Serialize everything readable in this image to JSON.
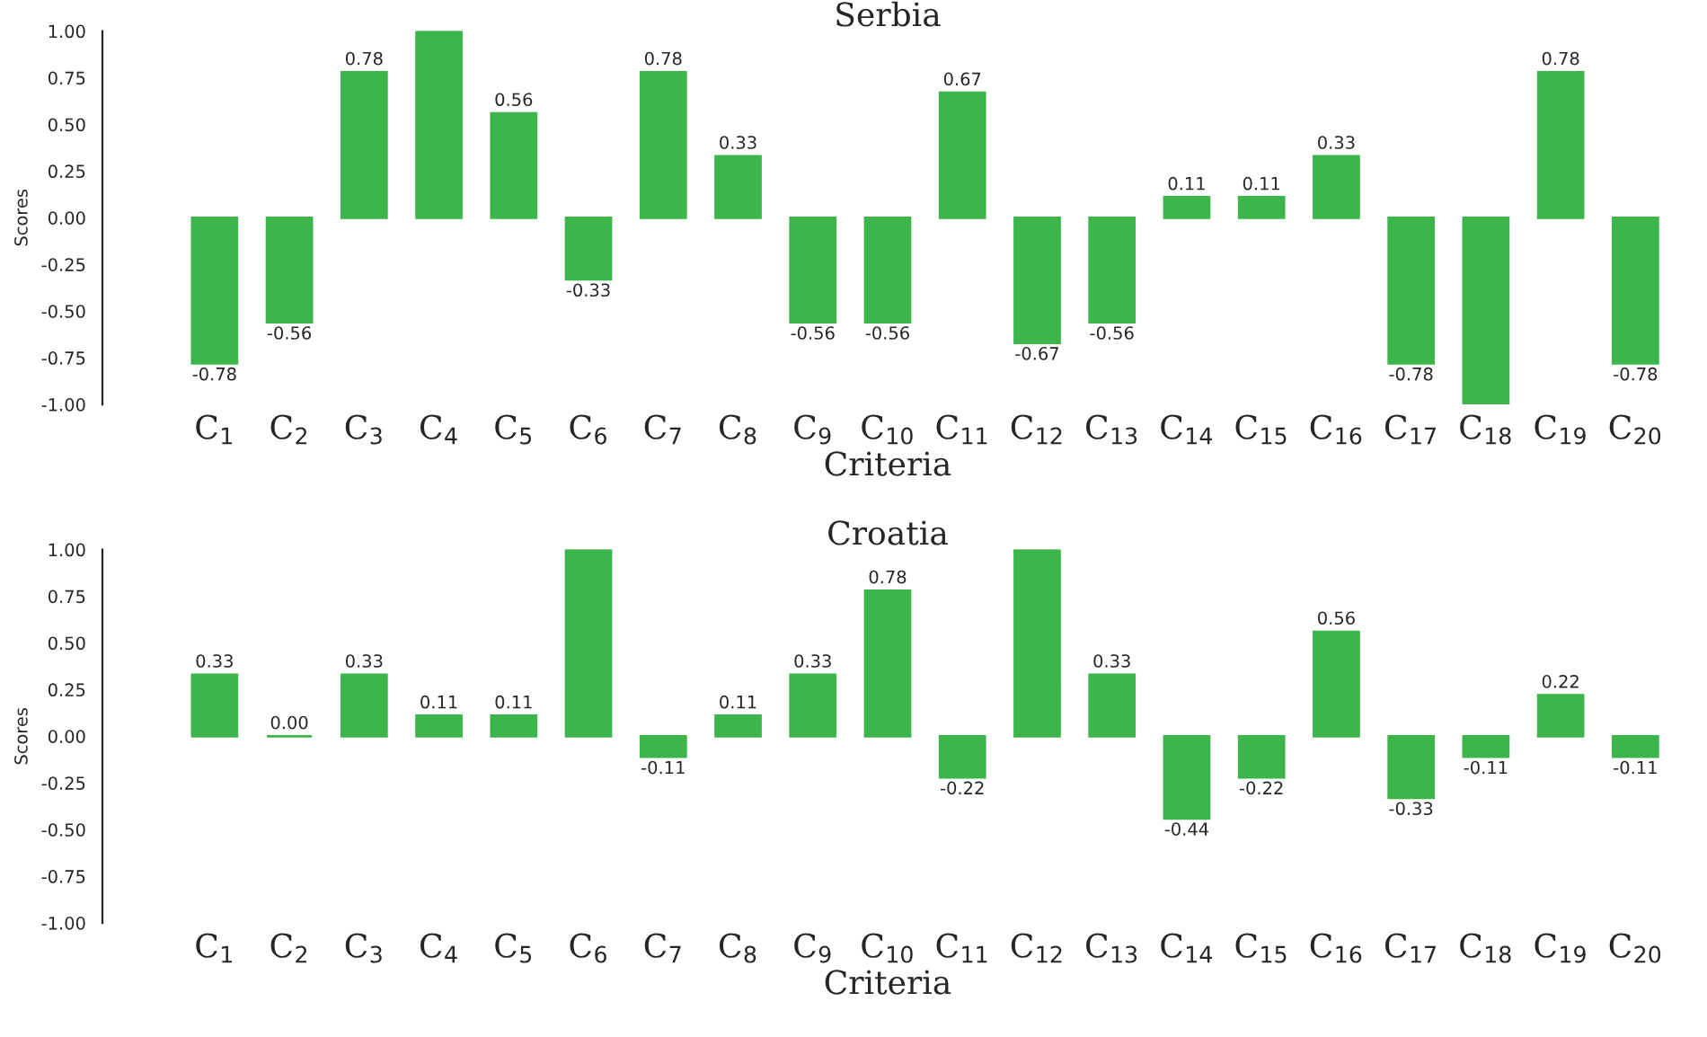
{
  "chart_data": [
    {
      "type": "bar",
      "title": "Serbia",
      "xlabel": "Criteria",
      "ylabel": "Scores",
      "categories": [
        "C$_{1}$",
        "C$_{2}$",
        "C$_{3}$",
        "C$_{4}$",
        "C$_{5}$",
        "C$_{6}$",
        "C$_{7}$",
        "C$_{8}$",
        "C$_{9}$",
        "C$_{10}$",
        "C$_{11}$",
        "C$_{12}$",
        "C$_{13}$",
        "C$_{14}$",
        "C$_{15}$",
        "C$_{16}$",
        "C$_{17}$",
        "C$_{18}$",
        "C$_{19}$",
        "C$_{20}$"
      ],
      "values": [
        -0.78,
        -0.56,
        0.78,
        1.0,
        0.56,
        -0.33,
        0.78,
        0.33,
        -0.56,
        -0.56,
        0.67,
        -0.67,
        -0.56,
        0.11,
        0.11,
        0.33,
        -0.78,
        -1.0,
        0.78,
        -0.78
      ],
      "value_labels": [
        "-0.78",
        "-0.56",
        "0.78",
        null,
        "0.56",
        "-0.33",
        "0.78",
        "0.33",
        "-0.56",
        "-0.56",
        "0.67",
        "-0.67",
        "-0.56",
        "0.11",
        "0.11",
        "0.33",
        "-0.78",
        null,
        "0.78",
        "-0.78"
      ],
      "color": "#3cb54a",
      "ylim": [
        -1.0,
        1.0
      ],
      "yticks": [
        {
          "value": -1.0,
          "label": "-1.00"
        },
        {
          "value": -0.75,
          "label": "-0.75"
        },
        {
          "value": -0.5,
          "label": "-0.50"
        },
        {
          "value": -0.25,
          "label": "-0.25"
        },
        {
          "value": 0.0,
          "label": "0.00"
        },
        {
          "value": 0.25,
          "label": "0.25"
        },
        {
          "value": 0.5,
          "label": "0.50"
        },
        {
          "value": 0.75,
          "label": "0.75"
        },
        {
          "value": 1.0,
          "label": "1.00"
        }
      ],
      "grid": false,
      "legend": false
    },
    {
      "type": "bar",
      "title": "Croatia",
      "xlabel": "Criteria",
      "ylabel": "Scores",
      "categories": [
        "C$_{1}$",
        "C$_{2}$",
        "C$_{3}$",
        "C$_{4}$",
        "C$_{5}$",
        "C$_{6}$",
        "C$_{7}$",
        "C$_{8}$",
        "C$_{9}$",
        "C$_{10}$",
        "C$_{11}$",
        "C$_{12}$",
        "C$_{13}$",
        "C$_{14}$",
        "C$_{15}$",
        "C$_{16}$",
        "C$_{17}$",
        "C$_{18}$",
        "C$_{19}$",
        "C$_{20}$"
      ],
      "values": [
        0.33,
        0.0,
        0.33,
        0.11,
        0.11,
        1.0,
        -0.11,
        0.11,
        0.33,
        0.78,
        -0.22,
        1.0,
        0.33,
        -0.44,
        -0.22,
        0.56,
        -0.33,
        -0.11,
        0.22,
        -0.11
      ],
      "value_labels": [
        "0.33",
        "0.00",
        "0.33",
        "0.11",
        "0.11",
        null,
        "-0.11",
        "0.11",
        "0.33",
        "0.78",
        "-0.22",
        null,
        "0.33",
        "-0.44",
        "-0.22",
        "0.56",
        "-0.33",
        "-0.11",
        "0.22",
        "-0.11"
      ],
      "color": "#3cb54a",
      "ylim": [
        -1.0,
        1.0
      ],
      "yticks": [
        {
          "value": -1.0,
          "label": "-1.00"
        },
        {
          "value": -0.75,
          "label": "-0.75"
        },
        {
          "value": -0.5,
          "label": "-0.50"
        },
        {
          "value": -0.25,
          "label": "-0.25"
        },
        {
          "value": 0.0,
          "label": "0.00"
        },
        {
          "value": 0.25,
          "label": "0.25"
        },
        {
          "value": 0.5,
          "label": "0.50"
        },
        {
          "value": 0.75,
          "label": "0.75"
        },
        {
          "value": 1.0,
          "label": "1.00"
        }
      ],
      "grid": false,
      "legend": false
    }
  ]
}
